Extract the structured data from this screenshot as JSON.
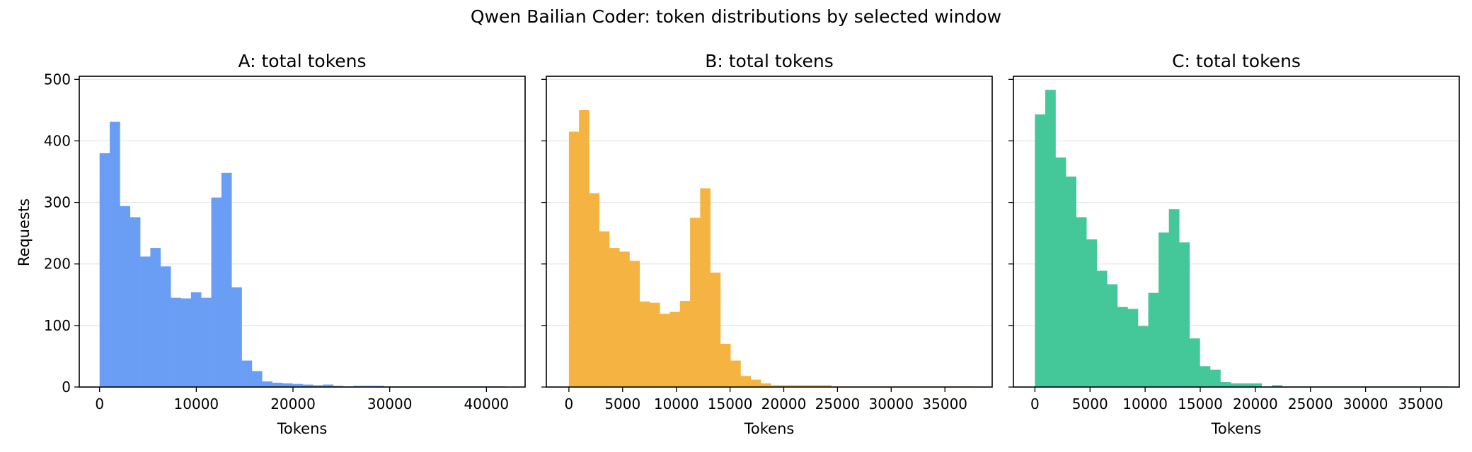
{
  "suptitle": "Qwen Bailian Coder: token distributions by selected window",
  "shared_ylabel": "Requests",
  "chart_data": [
    {
      "type": "bar",
      "title": "A: total tokens",
      "xlabel": "Tokens",
      "ylabel": "Requests",
      "color": "#6a9ef5",
      "xlim": [
        -2100,
        44000
      ],
      "ylim": [
        0,
        505
      ],
      "xticks": [
        0,
        10000,
        20000,
        30000,
        40000
      ],
      "yticks": [
        0,
        100,
        200,
        300,
        400,
        500
      ],
      "bin_width": 1050,
      "bin_start": 0,
      "values": [
        380,
        431,
        294,
        276,
        212,
        226,
        196,
        145,
        144,
        154,
        145,
        308,
        348,
        162,
        43,
        26,
        9,
        7,
        6,
        5,
        4,
        3,
        4,
        2,
        1,
        2,
        2,
        2,
        1,
        1,
        1,
        1,
        1,
        1,
        1,
        1,
        1,
        1,
        1,
        1
      ]
    },
    {
      "type": "bar",
      "title": "B: total tokens",
      "xlabel": "Tokens",
      "ylabel": "",
      "color": "#f5b342",
      "xlim": [
        -2100,
        39400
      ],
      "ylim": [
        0,
        505
      ],
      "xticks": [
        0,
        5000,
        10000,
        15000,
        20000,
        25000,
        30000,
        35000
      ],
      "yticks": [
        0,
        100,
        200,
        300,
        400,
        500
      ],
      "bin_width": 940,
      "bin_start": 0,
      "values": [
        415,
        450,
        315,
        253,
        226,
        220,
        205,
        139,
        137,
        119,
        122,
        140,
        275,
        323,
        186,
        70,
        43,
        18,
        12,
        6,
        3,
        3,
        3,
        3,
        3,
        3,
        1,
        1,
        1,
        1,
        1,
        1,
        1,
        1,
        1,
        1,
        1,
        1,
        1,
        1
      ]
    },
    {
      "type": "bar",
      "title": "C: total tokens",
      "xlabel": "Tokens",
      "ylabel": "",
      "color": "#44c799",
      "xlim": [
        -1950,
        38500
      ],
      "ylim": [
        0,
        505
      ],
      "xticks": [
        0,
        5000,
        10000,
        15000,
        20000,
        25000,
        30000,
        35000
      ],
      "yticks": [
        0,
        100,
        200,
        300,
        400,
        500
      ],
      "bin_width": 935,
      "bin_start": 0,
      "values": [
        443,
        483,
        373,
        342,
        276,
        240,
        189,
        167,
        130,
        127,
        99,
        153,
        251,
        289,
        235,
        79,
        34,
        28,
        8,
        6,
        6,
        6,
        1,
        3,
        1,
        1,
        1,
        1,
        1,
        1,
        1,
        1,
        1,
        1,
        1,
        1,
        1,
        1,
        1,
        1
      ]
    }
  ]
}
